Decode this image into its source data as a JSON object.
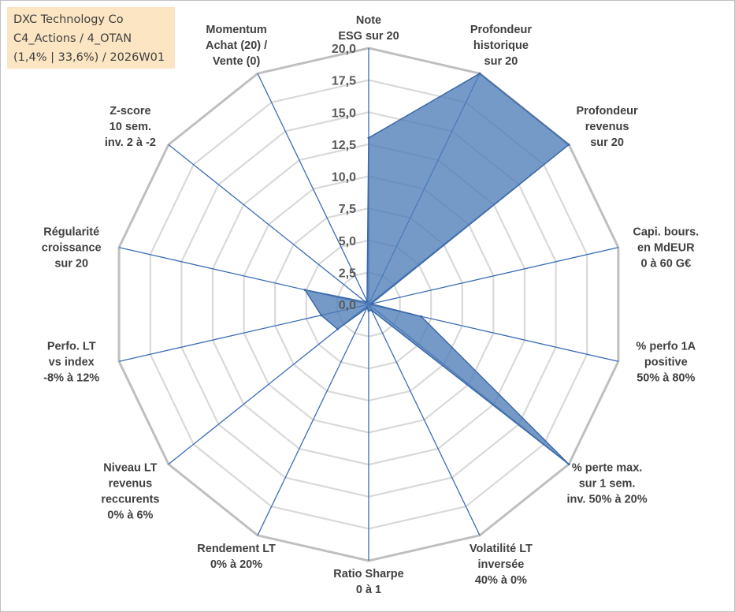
{
  "title_box": {
    "line1": "DXC Technology Co",
    "line2": "C4_Actions / 4_OTAN",
    "line3": "(1,4% | 33,6%) / 2026W01"
  },
  "colors": {
    "fill": "#4f7eb8",
    "edge": "#3a6aa8",
    "spoke": "#3a6db5",
    "ring": "#bfbfbf",
    "ring_inner": "#d9d9d9"
  },
  "chart_data": {
    "type": "radar",
    "rmax": 20,
    "tick_step": 2.5,
    "ticks": [
      "0,0",
      "2,5",
      "5,0",
      "7,5",
      "10,0",
      "12,5",
      "15,0",
      "17,5",
      "20,0"
    ],
    "axes": [
      {
        "label": [
          "Note",
          "ESG sur 20"
        ],
        "value": 13.0
      },
      {
        "label": [
          "Profondeur",
          "historique",
          "sur 20"
        ],
        "value": 20.0
      },
      {
        "label": [
          "Profondeur",
          "revenus",
          "sur 20"
        ],
        "value": 20.0
      },
      {
        "label": [
          "Capi. bours.",
          "en MdEUR",
          "0 à 60 G€"
        ],
        "value": 0.2
      },
      {
        "label": [
          "% perfo 1A",
          "positive",
          "50% à 80%"
        ],
        "value": 4.2
      },
      {
        "label": [
          "% perte max.",
          "sur 1 sem.",
          "inv. 50% à 20%"
        ],
        "value": 20.0
      },
      {
        "label": [
          "Volatilité LT",
          "inversée",
          "40% à 0%"
        ],
        "value": 0.5
      },
      {
        "label": [
          "Ratio Sharpe",
          "0 à 1"
        ],
        "value": 0.5
      },
      {
        "label": [
          "Rendement LT",
          "0% à 20%"
        ],
        "value": 0.3
      },
      {
        "label": [
          "Niveau LT",
          "revenus",
          "reccurents",
          "0% à 6%"
        ],
        "value": 3.1
      },
      {
        "label": [
          "Perfo. LT",
          "vs index",
          "-8% à 12%"
        ],
        "value": 3.8
      },
      {
        "label": [
          "Régularité",
          "croissance",
          "sur 20"
        ],
        "value": 5.1
      },
      {
        "label": [
          "Z-score",
          "10 sem.",
          "inv. 2 à -2"
        ],
        "value": 0.3
      },
      {
        "label": [
          "Momentum",
          "Achat (20) /",
          "Vente (0)"
        ],
        "value": 0.3
      }
    ]
  }
}
